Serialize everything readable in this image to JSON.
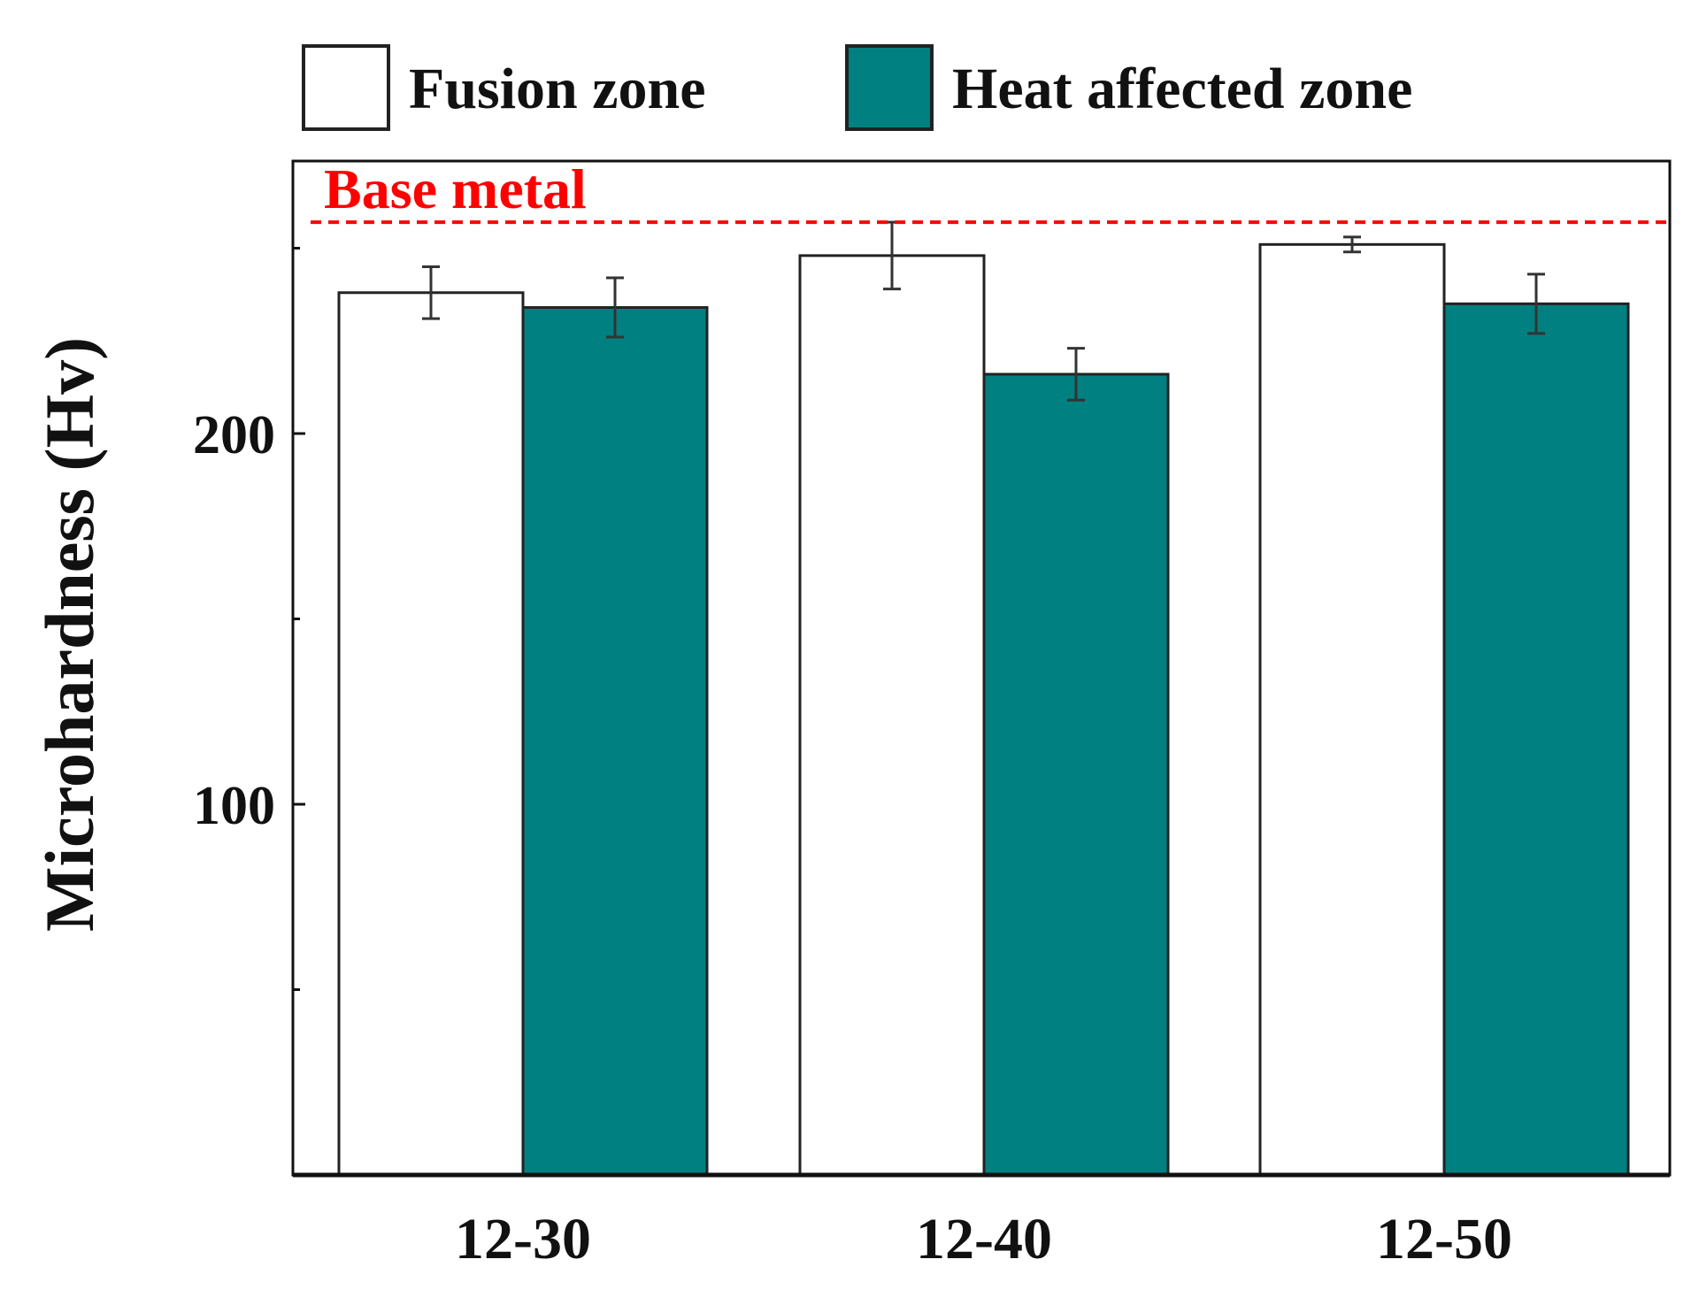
{
  "chart_data": {
    "type": "bar",
    "title": "",
    "xlabel": "",
    "ylabel": "Microhardness (Hv)",
    "ylim": [
      0,
      275
    ],
    "yticks": [
      100,
      200
    ],
    "categories": [
      "12-30",
      "12-40",
      "12-50"
    ],
    "series": [
      {
        "name": "Fusion zone",
        "color": "#ffffff",
        "values": [
          238,
          248,
          251
        ],
        "errors": [
          7,
          9,
          2
        ]
      },
      {
        "name": "Heat affected zone",
        "color": "#008080",
        "values": [
          234,
          216,
          235
        ],
        "errors": [
          8,
          7,
          8
        ]
      }
    ],
    "reference_line": {
      "label": "Base metal",
      "value": 257,
      "color": "#ff0000",
      "style": "dashed"
    },
    "legend_position": "top",
    "grid": false
  }
}
